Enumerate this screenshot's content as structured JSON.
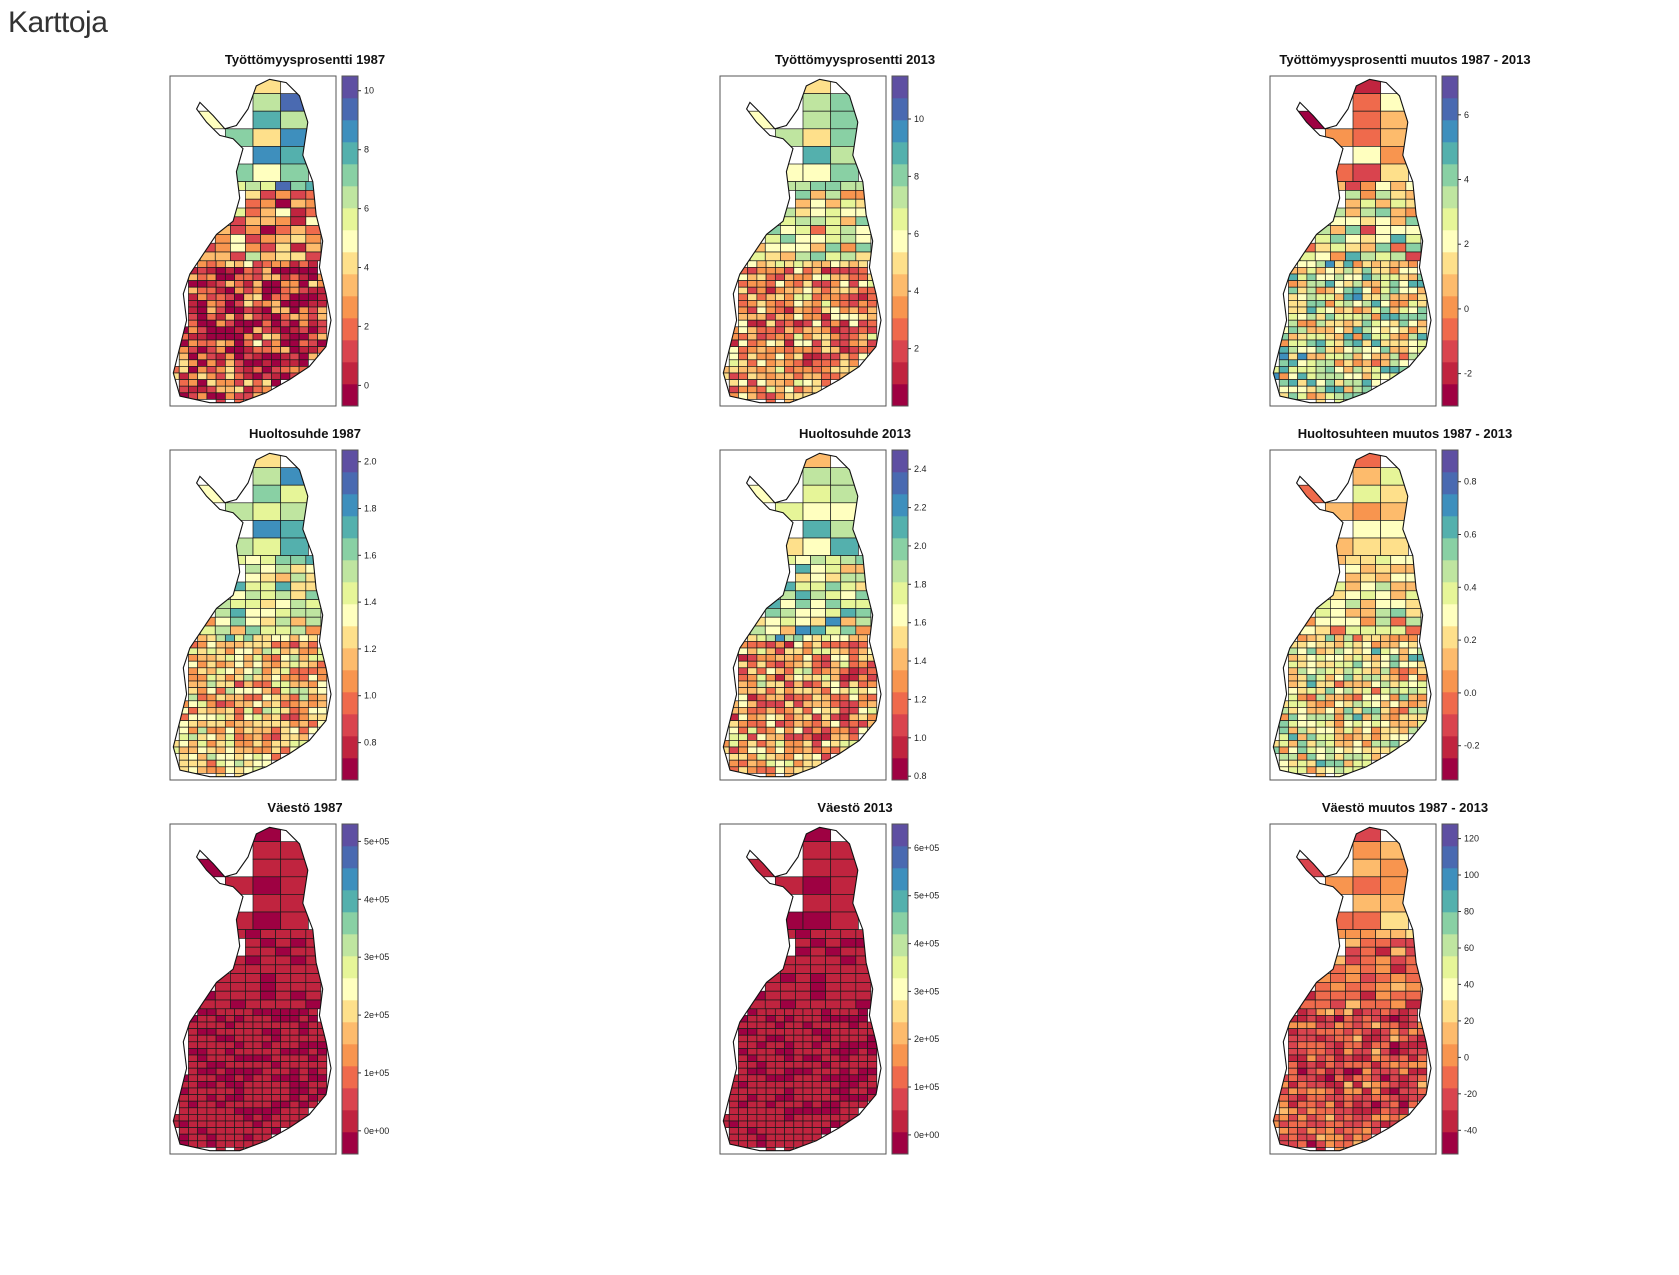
{
  "page": {
    "heading": "Karttoja"
  },
  "palette": [
    "#9e0142",
    "#c0243f",
    "#d9444e",
    "#ef6a4c",
    "#f8954f",
    "#fdbb6c",
    "#fee08b",
    "#ffffbf",
    "#e6f598",
    "#bfe5a0",
    "#89d0a4",
    "#54b0ad",
    "#3e8fbd",
    "#4a6ab1",
    "#5e4fa2"
  ],
  "chart_data": [
    {
      "type": "choropleth",
      "title": "Työttömyysprosentti 1987",
      "scale": {
        "min": -0.7,
        "max": 10.5
      },
      "ticks": [
        {
          "v": 0,
          "label": "0"
        },
        {
          "v": 2,
          "label": "2"
        },
        {
          "v": 4,
          "label": "4"
        },
        {
          "v": 6,
          "label": "6"
        },
        {
          "v": 8,
          "label": "8"
        },
        {
          "v": 10,
          "label": "10"
        }
      ],
      "north": 0.68,
      "mid": 0.3,
      "south": 0.18,
      "spread": 0.22
    },
    {
      "type": "choropleth",
      "title": "Työttömyysprosentti 2013",
      "scale": {
        "min": 0,
        "max": 11.5
      },
      "ticks": [
        {
          "v": 2,
          "label": "2"
        },
        {
          "v": 4,
          "label": "4"
        },
        {
          "v": 6,
          "label": "6"
        },
        {
          "v": 8,
          "label": "8"
        },
        {
          "v": 10,
          "label": "10"
        }
      ],
      "north": 0.62,
      "mid": 0.5,
      "south": 0.32,
      "spread": 0.18
    },
    {
      "type": "choropleth",
      "title": "Työttömyysprosentti muutos 1987 - 2013",
      "scale": {
        "min": -3,
        "max": 7.2
      },
      "ticks": [
        {
          "v": -2,
          "label": "-2"
        },
        {
          "v": 0,
          "label": "0"
        },
        {
          "v": 2,
          "label": "2"
        },
        {
          "v": 4,
          "label": "4"
        },
        {
          "v": 6,
          "label": "6"
        }
      ],
      "north": 0.3,
      "mid": 0.5,
      "south": 0.55,
      "spread": 0.22
    },
    {
      "type": "choropleth",
      "title": "Huoltosuhde 1987",
      "scale": {
        "min": 0.64,
        "max": 2.05
      },
      "ticks": [
        {
          "v": 0.8,
          "label": "0.8"
        },
        {
          "v": 1.0,
          "label": "1.0"
        },
        {
          "v": 1.2,
          "label": "1.2"
        },
        {
          "v": 1.4,
          "label": "1.4"
        },
        {
          "v": 1.6,
          "label": "1.6"
        },
        {
          "v": 1.8,
          "label": "1.8"
        },
        {
          "v": 2.0,
          "label": "2.0"
        }
      ],
      "north": 0.62,
      "mid": 0.55,
      "south": 0.42,
      "spread": 0.18
    },
    {
      "type": "choropleth",
      "title": "Huoltosuhde 2013",
      "scale": {
        "min": 0.78,
        "max": 2.5
      },
      "ticks": [
        {
          "v": 0.8,
          "label": "0.8"
        },
        {
          "v": 1.0,
          "label": "1.0"
        },
        {
          "v": 1.2,
          "label": "1.2"
        },
        {
          "v": 1.4,
          "label": "1.4"
        },
        {
          "v": 1.6,
          "label": "1.6"
        },
        {
          "v": 1.8,
          "label": "1.8"
        },
        {
          "v": 2.0,
          "label": "2.0"
        },
        {
          "v": 2.2,
          "label": "2.2"
        },
        {
          "v": 2.4,
          "label": "2.4"
        }
      ],
      "north": 0.55,
      "mid": 0.58,
      "south": 0.35,
      "spread": 0.2
    },
    {
      "type": "choropleth",
      "title": "Huoltosuhteen muutos 1987 - 2013",
      "scale": {
        "min": -0.33,
        "max": 0.92
      },
      "ticks": [
        {
          "v": -0.2,
          "label": "-0.2"
        },
        {
          "v": 0.0,
          "label": "0.0"
        },
        {
          "v": 0.2,
          "label": "0.2"
        },
        {
          "v": 0.4,
          "label": "0.4"
        },
        {
          "v": 0.6,
          "label": "0.6"
        },
        {
          "v": 0.8,
          "label": "0.8"
        }
      ],
      "north": 0.42,
      "mid": 0.45,
      "south": 0.5,
      "spread": 0.18
    },
    {
      "type": "choropleth",
      "title": "Väestö 1987",
      "scale": {
        "min": -40000,
        "max": 530000
      },
      "ticks": [
        {
          "v": 0,
          "label": "0e+00"
        },
        {
          "v": 100000,
          "label": "1e+05"
        },
        {
          "v": 200000,
          "label": "2e+05"
        },
        {
          "v": 300000,
          "label": "3e+05"
        },
        {
          "v": 400000,
          "label": "4e+05"
        },
        {
          "v": 500000,
          "label": "5e+05"
        }
      ],
      "north": 0.08,
      "mid": 0.08,
      "south": 0.08,
      "spread": 0.03
    },
    {
      "type": "choropleth",
      "title": "Väestö 2013",
      "scale": {
        "min": -40000,
        "max": 650000
      },
      "ticks": [
        {
          "v": 0,
          "label": "0e+00"
        },
        {
          "v": 100000,
          "label": "1e+05"
        },
        {
          "v": 200000,
          "label": "2e+05"
        },
        {
          "v": 300000,
          "label": "3e+05"
        },
        {
          "v": 400000,
          "label": "4e+05"
        },
        {
          "v": 500000,
          "label": "5e+05"
        },
        {
          "v": 600000,
          "label": "6e+05"
        }
      ],
      "north": 0.08,
      "mid": 0.08,
      "south": 0.08,
      "spread": 0.03
    },
    {
      "type": "choropleth",
      "title": "Väestö muutos 1987 - 2013",
      "scale": {
        "min": -53,
        "max": 128
      },
      "ticks": [
        {
          "v": -40,
          "label": "-40"
        },
        {
          "v": -20,
          "label": "-20"
        },
        {
          "v": 0,
          "label": "0"
        },
        {
          "v": 20,
          "label": "20"
        },
        {
          "v": 40,
          "label": "40"
        },
        {
          "v": 60,
          "label": "60"
        },
        {
          "v": 80,
          "label": "80"
        },
        {
          "v": 100,
          "label": "100"
        },
        {
          "v": 120,
          "label": "120"
        }
      ],
      "north": 0.3,
      "mid": 0.22,
      "south": 0.2,
      "spread": 0.12
    }
  ]
}
